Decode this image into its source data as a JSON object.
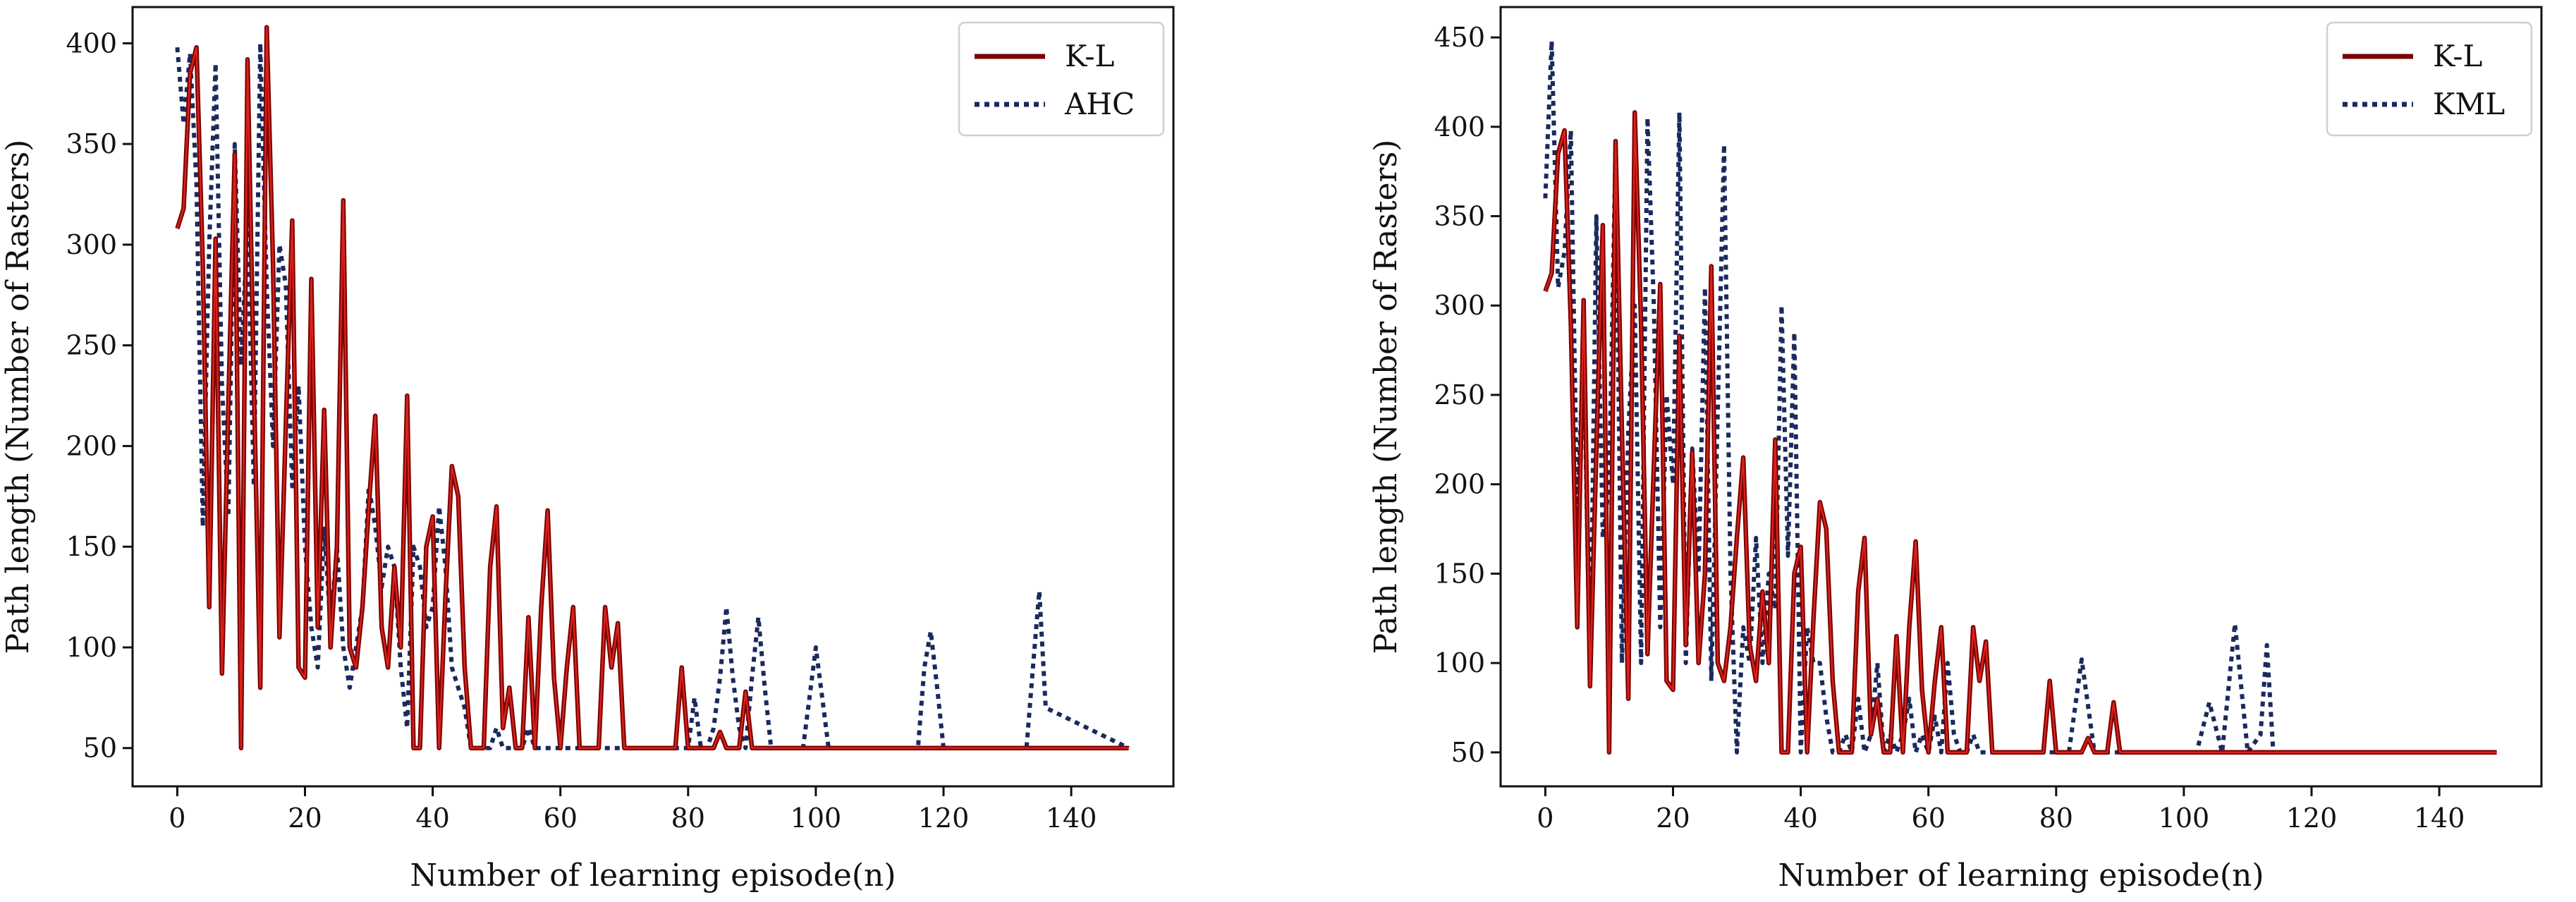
{
  "chart_data": [
    {
      "type": "line",
      "xlabel": "Number of learning episode(n)",
      "ylabel": "Path length (Number of Rasters)",
      "xlim": [
        -7,
        156
      ],
      "ylim": [
        31,
        418
      ],
      "xticks": [
        0,
        20,
        40,
        60,
        80,
        100,
        120,
        140
      ],
      "yticks": [
        50,
        100,
        150,
        200,
        250,
        300,
        350,
        400
      ],
      "legend_position": "top-right",
      "series": [
        {
          "name": "AHC",
          "style": "dotted",
          "color": "#1a2a5e",
          "x": [
            0,
            1,
            2,
            3,
            4,
            5,
            6,
            7,
            8,
            9,
            10,
            11,
            12,
            13,
            14,
            15,
            16,
            17,
            18,
            19,
            20,
            21,
            22,
            23,
            24,
            25,
            26,
            27,
            28,
            29,
            30,
            31,
            32,
            33,
            34,
            35,
            36,
            37,
            38,
            39,
            40,
            41,
            42,
            43,
            44,
            45,
            46,
            47,
            48,
            49,
            50,
            51,
            52,
            53,
            54,
            55,
            56,
            57,
            58,
            59,
            60,
            61,
            62,
            63,
            64,
            65,
            66,
            67,
            68,
            69,
            70,
            75,
            80,
            81,
            82,
            83,
            84,
            85,
            86,
            87,
            88,
            89,
            90,
            91,
            92,
            93,
            96,
            98,
            99,
            100,
            101,
            102,
            104,
            114,
            116,
            117,
            118,
            119,
            120,
            122,
            130,
            132,
            133,
            134,
            135,
            136,
            149
          ],
          "y": [
            398,
            360,
            395,
            330,
            160,
            300,
            390,
            230,
            165,
            350,
            240,
            310,
            180,
            400,
            280,
            200,
            300,
            280,
            180,
            230,
            150,
            110,
            90,
            160,
            110,
            150,
            100,
            80,
            100,
            120,
            180,
            160,
            130,
            150,
            140,
            90,
            60,
            150,
            140,
            110,
            120,
            170,
            140,
            90,
            80,
            70,
            50,
            50,
            50,
            50,
            60,
            50,
            50,
            50,
            50,
            60,
            50,
            50,
            50,
            50,
            50,
            50,
            50,
            50,
            50,
            50,
            50,
            50,
            50,
            50,
            50,
            50,
            50,
            75,
            50,
            50,
            60,
            85,
            120,
            85,
            60,
            50,
            85,
            115,
            80,
            50,
            50,
            50,
            75,
            100,
            75,
            50,
            50,
            50,
            50,
            90,
            108,
            80,
            50,
            50,
            50,
            50,
            50,
            90,
            128,
            70,
            50
          ]
        },
        {
          "name": "K-L",
          "style": "solid",
          "color": "#7a0000",
          "x": [
            0,
            1,
            2,
            3,
            4,
            5,
            6,
            7,
            8,
            9,
            10,
            11,
            12,
            13,
            14,
            15,
            16,
            17,
            18,
            19,
            20,
            21,
            22,
            23,
            24,
            25,
            26,
            27,
            28,
            29,
            30,
            31,
            32,
            33,
            34,
            35,
            36,
            37,
            38,
            39,
            40,
            41,
            42,
            43,
            44,
            45,
            46,
            47,
            48,
            49,
            50,
            51,
            52,
            53,
            54,
            55,
            56,
            57,
            58,
            59,
            60,
            61,
            62,
            63,
            64,
            65,
            66,
            67,
            68,
            69,
            70,
            71,
            72,
            73,
            74,
            75,
            76,
            77,
            78,
            79,
            80,
            81,
            82,
            83,
            84,
            85,
            86,
            87,
            88,
            89,
            90,
            91,
            92,
            100,
            110,
            120,
            130,
            140,
            149
          ],
          "y": [
            308,
            318,
            385,
            398,
            290,
            120,
            303,
            87,
            220,
            345,
            50,
            392,
            230,
            80,
            408,
            290,
            105,
            210,
            312,
            90,
            85,
            283,
            110,
            218,
            100,
            150,
            322,
            100,
            90,
            120,
            170,
            215,
            110,
            90,
            140,
            100,
            225,
            50,
            50,
            150,
            165,
            50,
            125,
            190,
            175,
            90,
            50,
            50,
            50,
            140,
            170,
            60,
            80,
            50,
            50,
            115,
            50,
            120,
            168,
            85,
            50,
            90,
            120,
            50,
            50,
            50,
            50,
            120,
            90,
            112,
            50,
            50,
            50,
            50,
            50,
            50,
            50,
            50,
            50,
            90,
            50,
            50,
            50,
            50,
            50,
            58,
            50,
            50,
            50,
            78,
            50,
            50,
            50,
            50,
            50,
            50,
            50,
            50,
            50
          ]
        }
      ]
    },
    {
      "type": "line",
      "xlabel": "Number of learning episode(n)",
      "ylabel": "Path length (Number of Rasters)",
      "xlim": [
        -7,
        156
      ],
      "ylim": [
        31,
        467
      ],
      "xticks": [
        0,
        20,
        40,
        60,
        80,
        100,
        120,
        140
      ],
      "yticks": [
        50,
        100,
        150,
        200,
        250,
        300,
        350,
        400,
        450
      ],
      "legend_position": "top-right",
      "series": [
        {
          "name": "KML",
          "style": "dotted",
          "color": "#1a2a5e",
          "x": [
            0,
            1,
            2,
            3,
            4,
            5,
            6,
            7,
            8,
            9,
            10,
            11,
            12,
            13,
            14,
            15,
            16,
            17,
            18,
            19,
            20,
            21,
            22,
            23,
            24,
            25,
            26,
            27,
            28,
            29,
            30,
            31,
            32,
            33,
            34,
            35,
            36,
            37,
            38,
            39,
            40,
            41,
            42,
            43,
            44,
            45,
            46,
            47,
            48,
            49,
            50,
            51,
            52,
            53,
            54,
            55,
            56,
            57,
            58,
            59,
            60,
            61,
            62,
            63,
            64,
            65,
            66,
            67,
            68,
            69,
            70,
            80,
            82,
            84,
            86,
            88,
            100,
            102,
            104,
            106,
            108,
            110,
            112,
            113,
            114,
            116,
            149
          ],
          "y": [
            360,
            448,
            310,
            330,
            398,
            180,
            280,
            90,
            350,
            170,
            200,
            390,
            100,
            230,
            300,
            100,
            405,
            300,
            120,
            250,
            200,
            408,
            100,
            220,
            150,
            310,
            90,
            240,
            390,
            150,
            50,
            120,
            100,
            170,
            100,
            150,
            130,
            300,
            160,
            285,
            50,
            120,
            100,
            100,
            70,
            50,
            50,
            60,
            50,
            80,
            50,
            60,
            100,
            50,
            60,
            50,
            60,
            80,
            50,
            60,
            50,
            70,
            50,
            100,
            60,
            50,
            50,
            60,
            50,
            50,
            50,
            50,
            50,
            102,
            50,
            50,
            50,
            50,
            78,
            50,
            122,
            50,
            60,
            110,
            50,
            50,
            50
          ]
        },
        {
          "name": "K-L",
          "style": "solid",
          "color": "#7a0000",
          "x": [
            0,
            1,
            2,
            3,
            4,
            5,
            6,
            7,
            8,
            9,
            10,
            11,
            12,
            13,
            14,
            15,
            16,
            17,
            18,
            19,
            20,
            21,
            22,
            23,
            24,
            25,
            26,
            27,
            28,
            29,
            30,
            31,
            32,
            33,
            34,
            35,
            36,
            37,
            38,
            39,
            40,
            41,
            42,
            43,
            44,
            45,
            46,
            47,
            48,
            49,
            50,
            51,
            52,
            53,
            54,
            55,
            56,
            57,
            58,
            59,
            60,
            61,
            62,
            63,
            64,
            65,
            66,
            67,
            68,
            69,
            70,
            71,
            72,
            73,
            74,
            75,
            76,
            77,
            78,
            79,
            80,
            81,
            82,
            83,
            84,
            85,
            86,
            87,
            88,
            89,
            90,
            91,
            92,
            100,
            110,
            120,
            130,
            140,
            149
          ],
          "y": [
            308,
            318,
            385,
            398,
            290,
            120,
            303,
            87,
            220,
            345,
            50,
            392,
            230,
            80,
            408,
            290,
            105,
            210,
            312,
            90,
            85,
            283,
            110,
            218,
            100,
            150,
            322,
            100,
            90,
            120,
            170,
            215,
            110,
            90,
            140,
            100,
            225,
            50,
            50,
            150,
            165,
            50,
            125,
            190,
            175,
            90,
            50,
            50,
            50,
            140,
            170,
            60,
            80,
            50,
            50,
            115,
            50,
            120,
            168,
            85,
            50,
            90,
            120,
            50,
            50,
            50,
            50,
            120,
            90,
            112,
            50,
            50,
            50,
            50,
            50,
            50,
            50,
            50,
            50,
            90,
            50,
            50,
            50,
            50,
            50,
            58,
            50,
            50,
            50,
            78,
            50,
            50,
            50,
            50,
            50,
            50,
            50,
            50,
            50
          ]
        }
      ]
    }
  ]
}
